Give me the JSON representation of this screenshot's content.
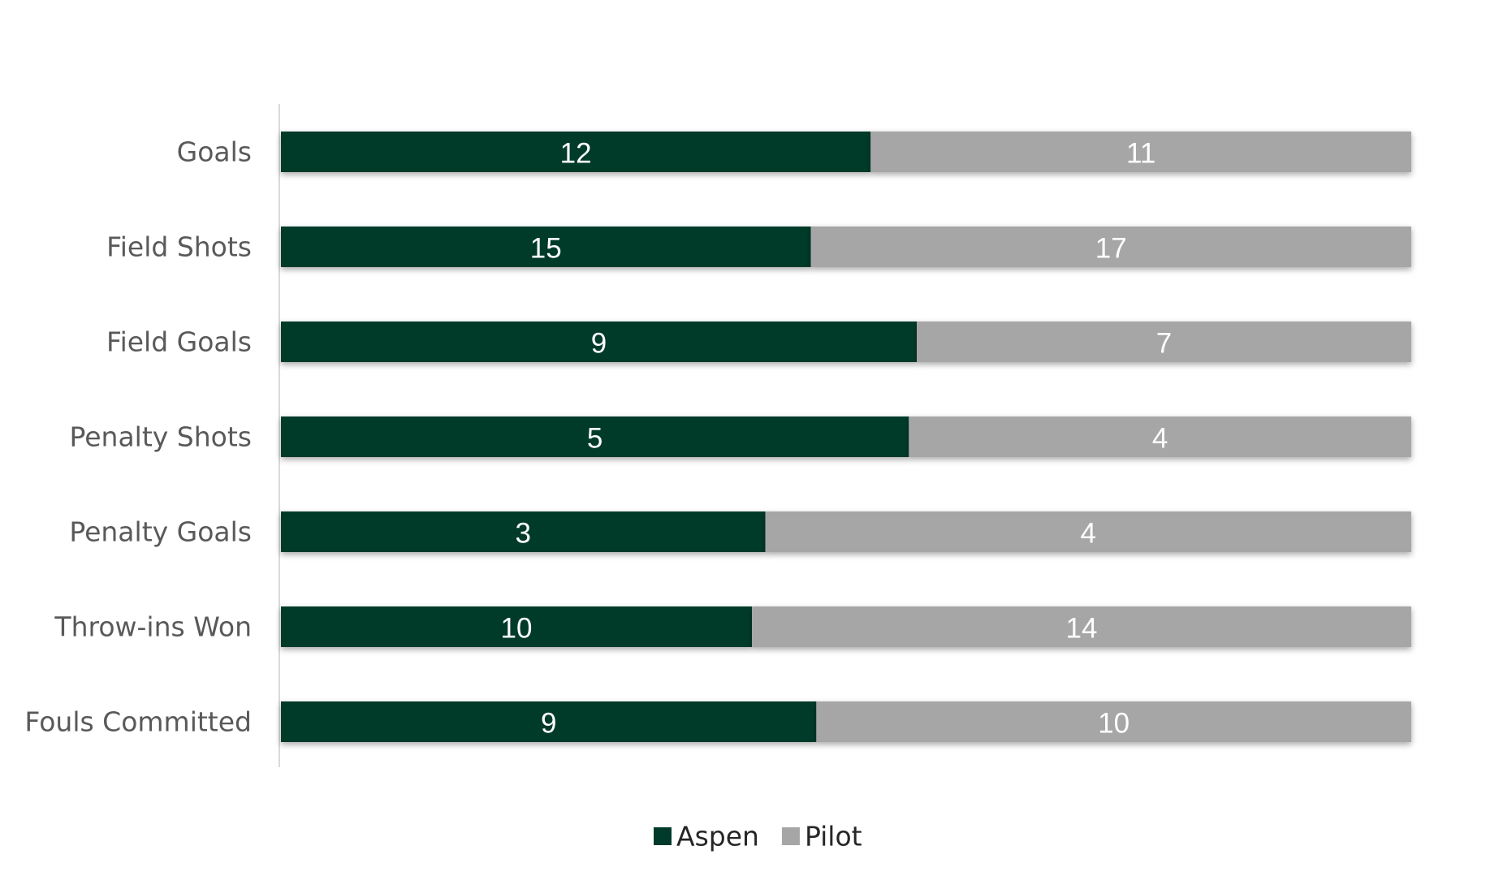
{
  "chart_data": {
    "type": "bar",
    "orientation": "horizontal",
    "stacking": "percent",
    "categories": [
      "Goals",
      "Field Shots",
      "Field Goals",
      "Penalty Shots",
      "Penalty Goals",
      "Throw-ins Won",
      "Fouls Committed"
    ],
    "series": [
      {
        "name": "Aspen",
        "values": [
          12,
          15,
          9,
          5,
          3,
          10,
          9
        ],
        "color": "#003A2B"
      },
      {
        "name": "Pilot",
        "values": [
          11,
          17,
          7,
          4,
          4,
          14,
          10
        ],
        "color": "#A6A6A6"
      }
    ],
    "title": "",
    "xlabel": "",
    "ylabel": "",
    "grid": false,
    "legend_position": "bottom-center",
    "data_labels": true
  }
}
